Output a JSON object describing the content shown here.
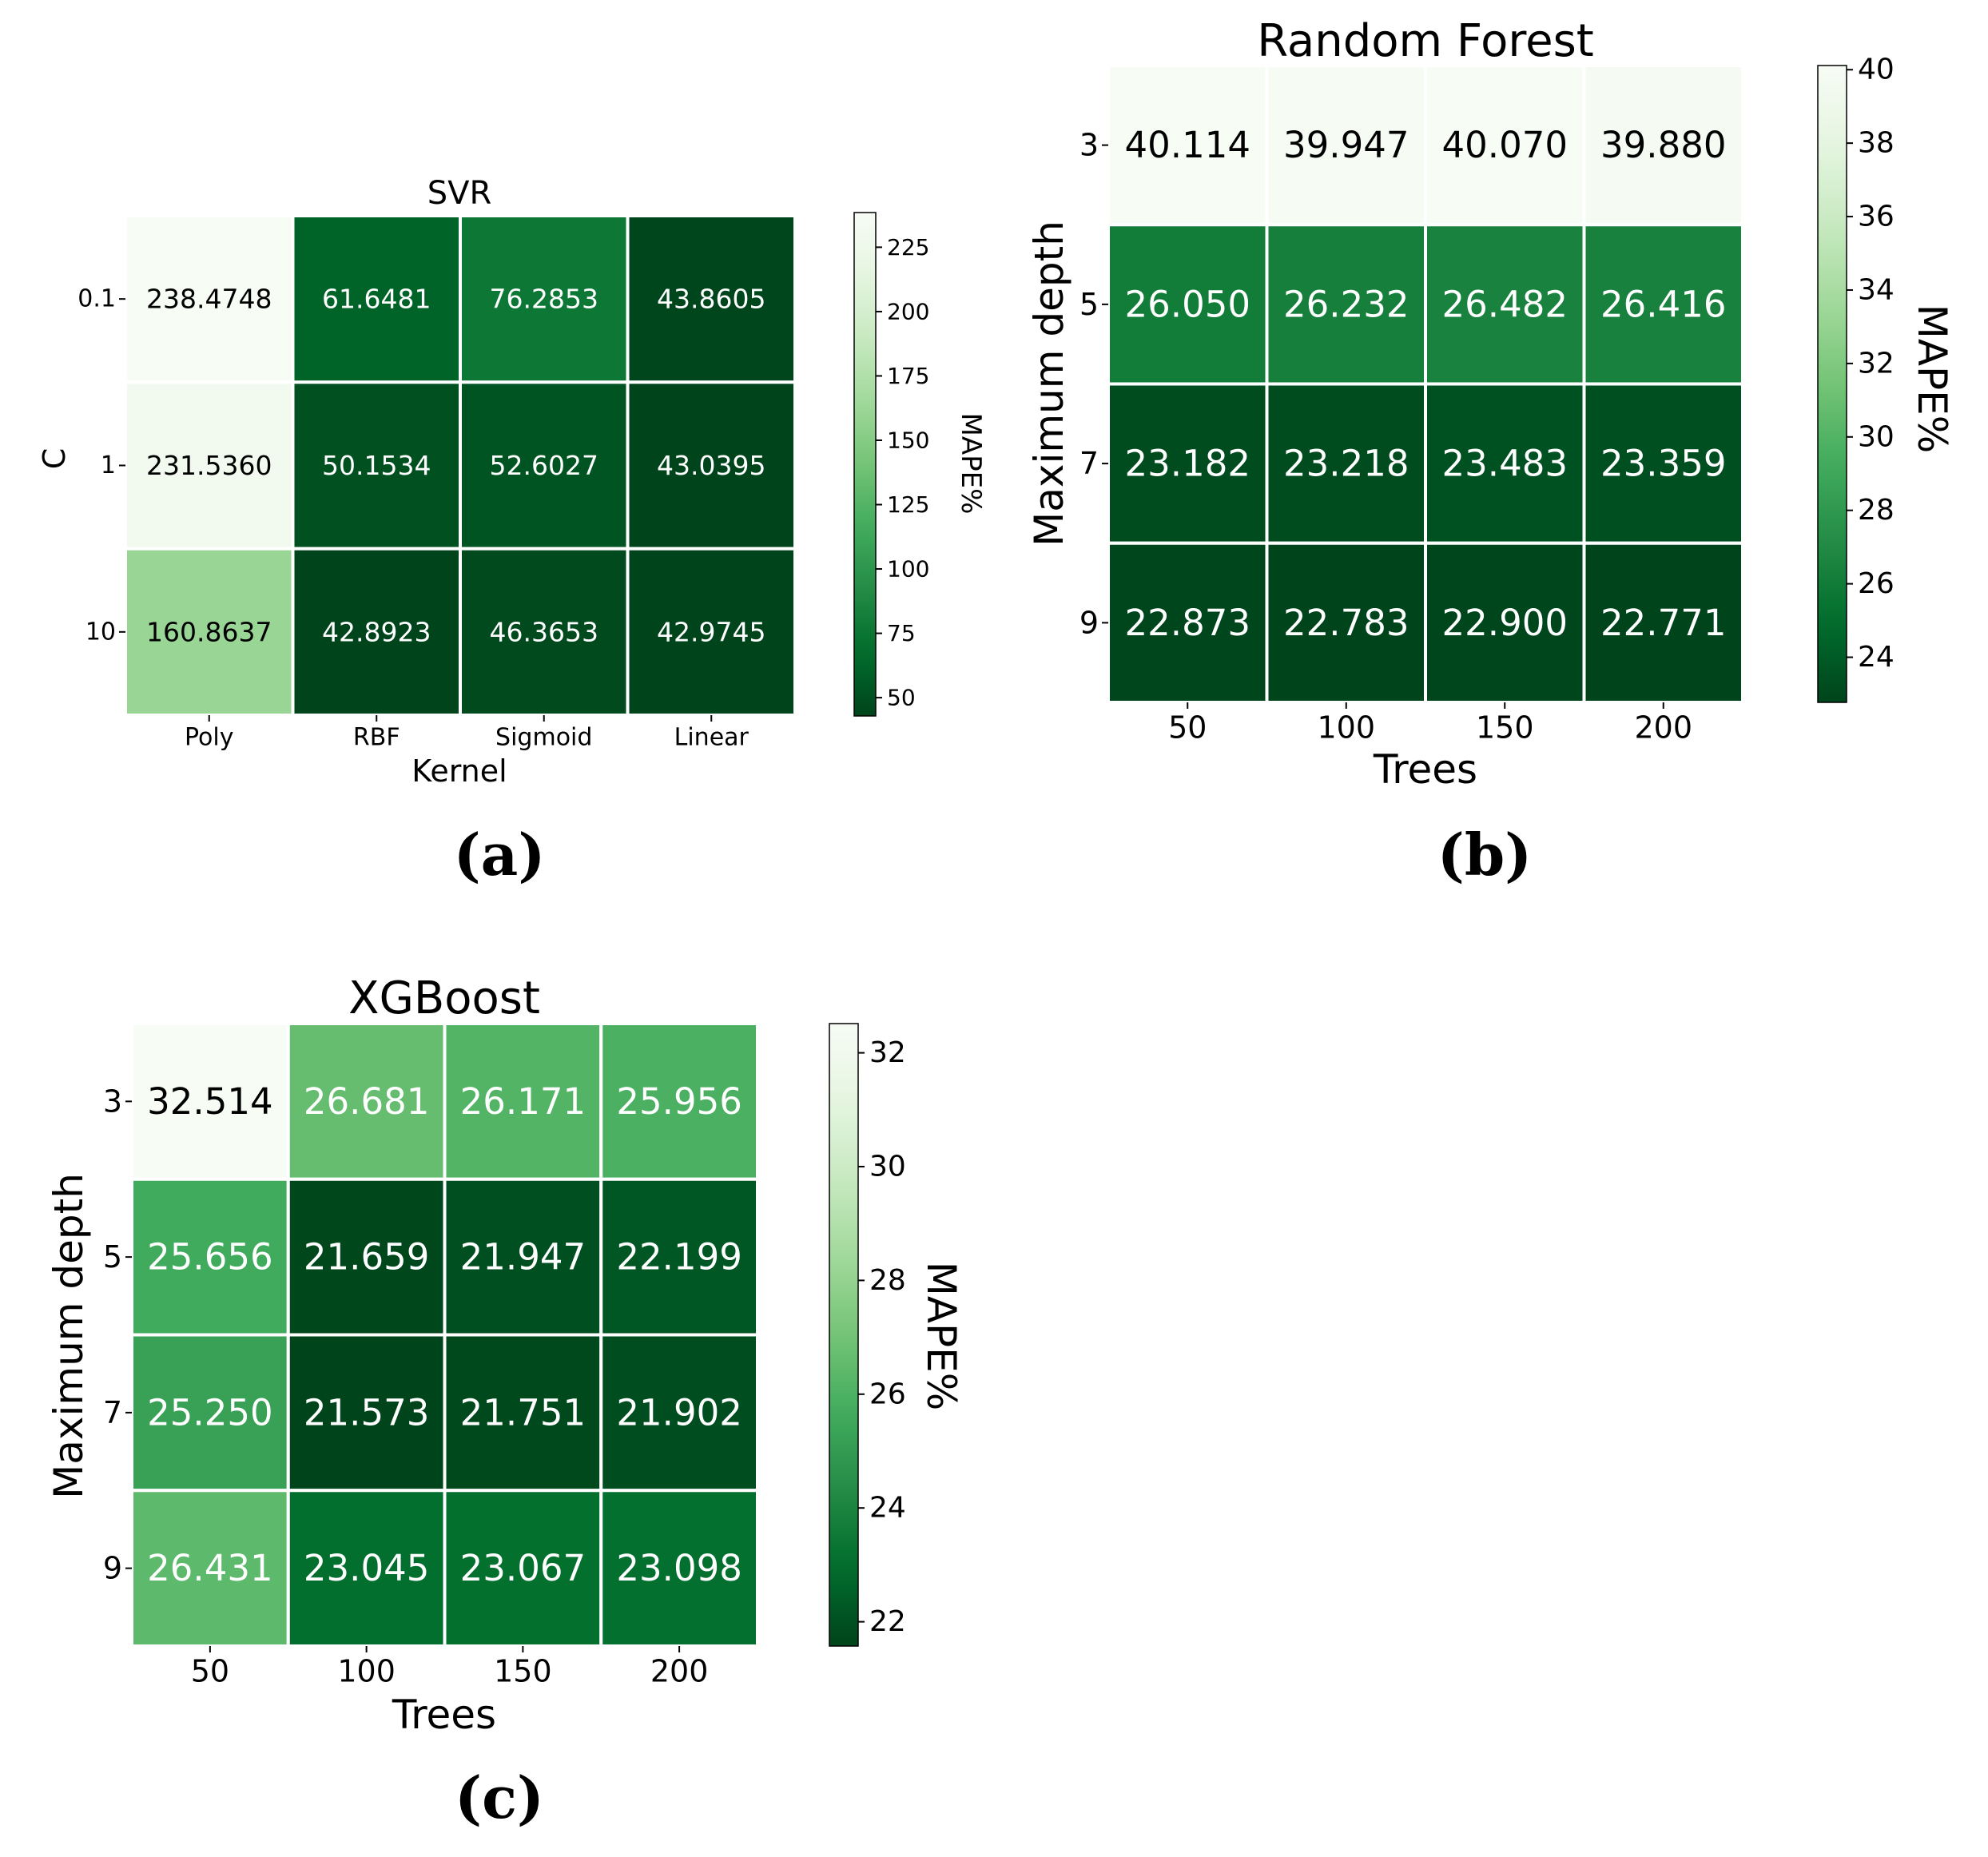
{
  "chart_data": [
    {
      "id": "svr",
      "type": "heatmap",
      "panel_label": "(a)",
      "title": "SVR",
      "xlabel": "Kernel",
      "ylabel": "C",
      "x": [
        "Poly",
        "RBF",
        "Sigmoid",
        "Linear"
      ],
      "y": [
        "0.1",
        "1",
        "10"
      ],
      "values": [
        [
          238.4748,
          61.6481,
          76.2853,
          43.8605
        ],
        [
          231.536,
          50.1534,
          52.6027,
          43.0395
        ],
        [
          160.8637,
          42.8923,
          46.3653,
          42.9745
        ]
      ],
      "labels": [
        [
          "238.4748",
          "61.6481",
          "76.2853",
          "43.8605"
        ],
        [
          "231.5360",
          "50.1534",
          "52.6027",
          "43.0395"
        ],
        [
          "160.8637",
          "42.8923",
          "46.3653",
          "42.9745"
        ]
      ],
      "colorbar": {
        "label": "MAPE%",
        "range": [
          42.8923,
          238.4748
        ],
        "ticks": [
          50,
          75,
          100,
          125,
          150,
          175,
          200,
          225
        ],
        "colormap": "Greens_r"
      },
      "grid": false
    },
    {
      "id": "rf",
      "type": "heatmap",
      "panel_label": "(b)",
      "title": "Random Forest",
      "xlabel": "Trees",
      "ylabel": "Maximum depth",
      "x": [
        "50",
        "100",
        "150",
        "200"
      ],
      "y": [
        "3",
        "5",
        "7",
        "9"
      ],
      "values": [
        [
          40.114,
          39.947,
          40.07,
          39.88
        ],
        [
          26.05,
          26.232,
          26.482,
          26.416
        ],
        [
          23.182,
          23.218,
          23.483,
          23.359
        ],
        [
          22.873,
          22.783,
          22.9,
          22.771
        ]
      ],
      "labels": [
        [
          "40.114",
          "39.947",
          "40.070",
          "39.880"
        ],
        [
          "26.050",
          "26.232",
          "26.482",
          "26.416"
        ],
        [
          "23.182",
          "23.218",
          "23.483",
          "23.359"
        ],
        [
          "22.873",
          "22.783",
          "22.900",
          "22.771"
        ]
      ],
      "colorbar": {
        "label": "MAPE%",
        "range": [
          22.771,
          40.114
        ],
        "ticks": [
          24,
          26,
          28,
          30,
          32,
          34,
          36,
          38,
          40
        ],
        "colormap": "Greens_r"
      },
      "grid": false
    },
    {
      "id": "xgb",
      "type": "heatmap",
      "panel_label": "(c)",
      "title": "XGBoost",
      "xlabel": "Trees",
      "ylabel": "Maximum depth",
      "x": [
        "50",
        "100",
        "150",
        "200"
      ],
      "y": [
        "3",
        "5",
        "7",
        "9"
      ],
      "values": [
        [
          32.514,
          26.681,
          26.171,
          25.956
        ],
        [
          25.656,
          21.659,
          21.947,
          22.199
        ],
        [
          25.25,
          21.573,
          21.751,
          21.902
        ],
        [
          26.431,
          23.045,
          23.067,
          23.098
        ]
      ],
      "labels": [
        [
          "32.514",
          "26.681",
          "26.171",
          "25.956"
        ],
        [
          "25.656",
          "21.659",
          "21.947",
          "22.199"
        ],
        [
          "25.250",
          "21.573",
          "21.751",
          "21.902"
        ],
        [
          "26.431",
          "23.045",
          "23.067",
          "23.098"
        ]
      ],
      "colorbar": {
        "label": "MAPE%",
        "range": [
          21.573,
          32.514
        ],
        "ticks": [
          22,
          24,
          26,
          28,
          30,
          32
        ],
        "colormap": "Greens_r"
      },
      "grid": false
    }
  ]
}
